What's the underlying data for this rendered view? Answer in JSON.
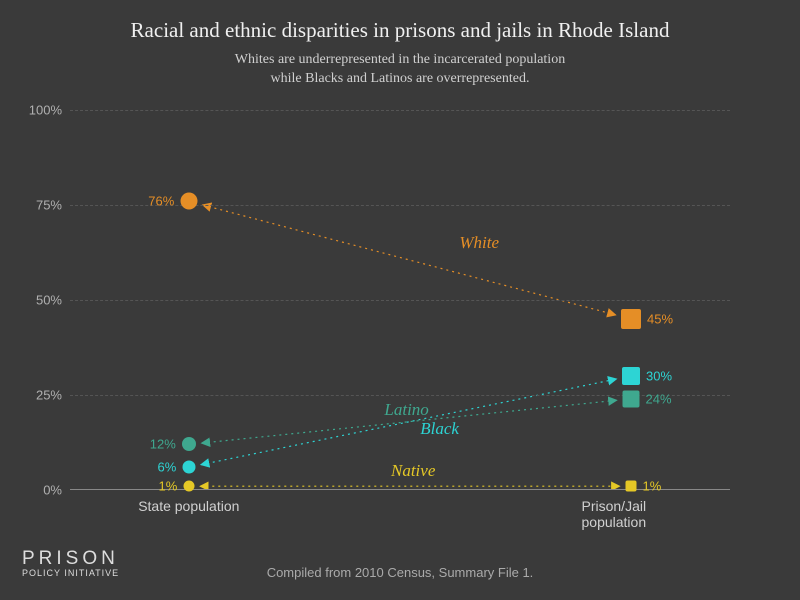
{
  "title": "Racial and ethnic disparities in prisons and jails in Rhode Island",
  "subtitle_line1": "Whites are underrepresented in the incarcerated population",
  "subtitle_line2": "while Blacks and Latinos are overrepresented.",
  "footer": "Compiled from 2010 Census, Summary File 1.",
  "logo": {
    "top": "PRISON",
    "bottom": "POLICY INITIATIVE"
  },
  "chart": {
    "type": "slopegraph",
    "background_color": "#3a3a3a",
    "grid_color": "#555555",
    "axis_color": "#888888",
    "ylim": [
      0,
      100
    ],
    "ytick_step": 25,
    "ytick_labels": [
      "0%",
      "25%",
      "50%",
      "75%",
      "100%"
    ],
    "x_categories": [
      "State population",
      "Prison/Jail population"
    ],
    "x_positions_pct": [
      18,
      85
    ],
    "left_marker_shape": "circle",
    "right_marker_shape": "square",
    "label_fontsize": 13,
    "series_label_fontsize": 17,
    "series": [
      {
        "name": "White",
        "color": "#e58e26",
        "state_pct": 76,
        "prison_pct": 45,
        "left_label": "76%",
        "right_label": "45%",
        "series_label": "White",
        "label_x_pct": 62,
        "label_y_pct": 65,
        "marker_left_size": 17,
        "marker_right_size": 20
      },
      {
        "name": "Black",
        "color": "#2dd4d4",
        "state_pct": 6,
        "prison_pct": 30,
        "left_label": "6%",
        "right_label": "30%",
        "series_label": "Black",
        "label_x_pct": 56,
        "label_y_pct": 16,
        "marker_left_size": 13,
        "marker_right_size": 18
      },
      {
        "name": "Latino",
        "color": "#3fa88f",
        "state_pct": 12,
        "prison_pct": 24,
        "left_label": "12%",
        "right_label": "24%",
        "series_label": "Latino",
        "label_x_pct": 51,
        "label_y_pct": 21,
        "marker_left_size": 14,
        "marker_right_size": 17
      },
      {
        "name": "Native",
        "color": "#e5c826",
        "state_pct": 1,
        "prison_pct": 1,
        "left_label": "1%",
        "right_label": "1%",
        "series_label": "Native",
        "label_x_pct": 52,
        "label_y_pct": 5,
        "marker_left_size": 11,
        "marker_right_size": 11
      }
    ]
  }
}
